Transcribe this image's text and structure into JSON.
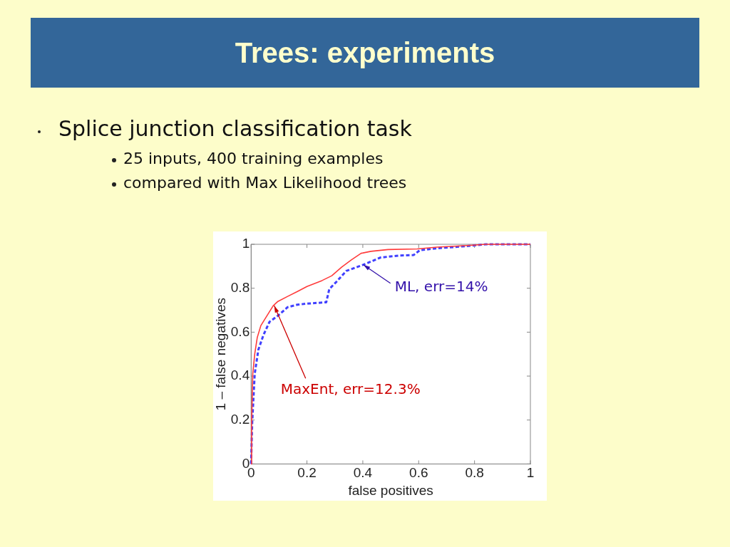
{
  "chart_data": {
    "type": "line",
    "title": "Trees: experiments",
    "subtitle": "Splice junction classification task",
    "xlabel": "false positives",
    "ylabel": "1 – false negatives",
    "xlim": [
      0,
      1
    ],
    "ylim": [
      0,
      1
    ],
    "xticks": [
      0,
      0.2,
      0.4,
      0.6,
      0.8,
      1
    ],
    "yticks": [
      0,
      0.2,
      0.4,
      0.6,
      0.8,
      1
    ],
    "grid": false,
    "legend": false,
    "marker": "none",
    "series": [
      {
        "color": "#ff3b3b",
        "line_style": "solid",
        "x": [
          0,
          0.002,
          0.006,
          0.013,
          0.022,
          0.035,
          0.052,
          0.079,
          0.096,
          0.131,
          0.166,
          0.2,
          0.254,
          0.289,
          0.324,
          0.359,
          0.394,
          0.429,
          0.49,
          0.595,
          0.665,
          0.796,
          0.84,
          1
        ],
        "values": [
          0,
          0.19,
          0.41,
          0.5,
          0.575,
          0.63,
          0.665,
          0.72,
          0.74,
          0.763,
          0.785,
          0.808,
          0.835,
          0.857,
          0.896,
          0.929,
          0.959,
          0.968,
          0.976,
          0.979,
          0.987,
          0.996,
          1,
          1
        ]
      },
      {
        "color": "#4040ff",
        "line_style": "dashed",
        "x": [
          0,
          0.004,
          0.013,
          0.026,
          0.044,
          0.066,
          0.096,
          0.131,
          0.166,
          0.2,
          0.269,
          0.28,
          0.306,
          0.341,
          0.402,
          0.464,
          0.534,
          0.582,
          0.604,
          0.665,
          0.753,
          0.84,
          1
        ],
        "values": [
          0,
          0.19,
          0.41,
          0.52,
          0.586,
          0.647,
          0.675,
          0.714,
          0.725,
          0.73,
          0.736,
          0.796,
          0.83,
          0.879,
          0.907,
          0.94,
          0.949,
          0.951,
          0.973,
          0.982,
          0.99,
          1,
          1
        ]
      }
    ],
    "annotations": [
      "25 inputs, 400 training examples",
      "compared with Max Likelihood trees",
      {
        "text": "ML, err=14%",
        "x": 0.402,
        "y": 0.907
      },
      {
        "text": "MaxEnt, err=12.3%",
        "x": 0.083,
        "y": 0.72
      }
    ]
  }
}
